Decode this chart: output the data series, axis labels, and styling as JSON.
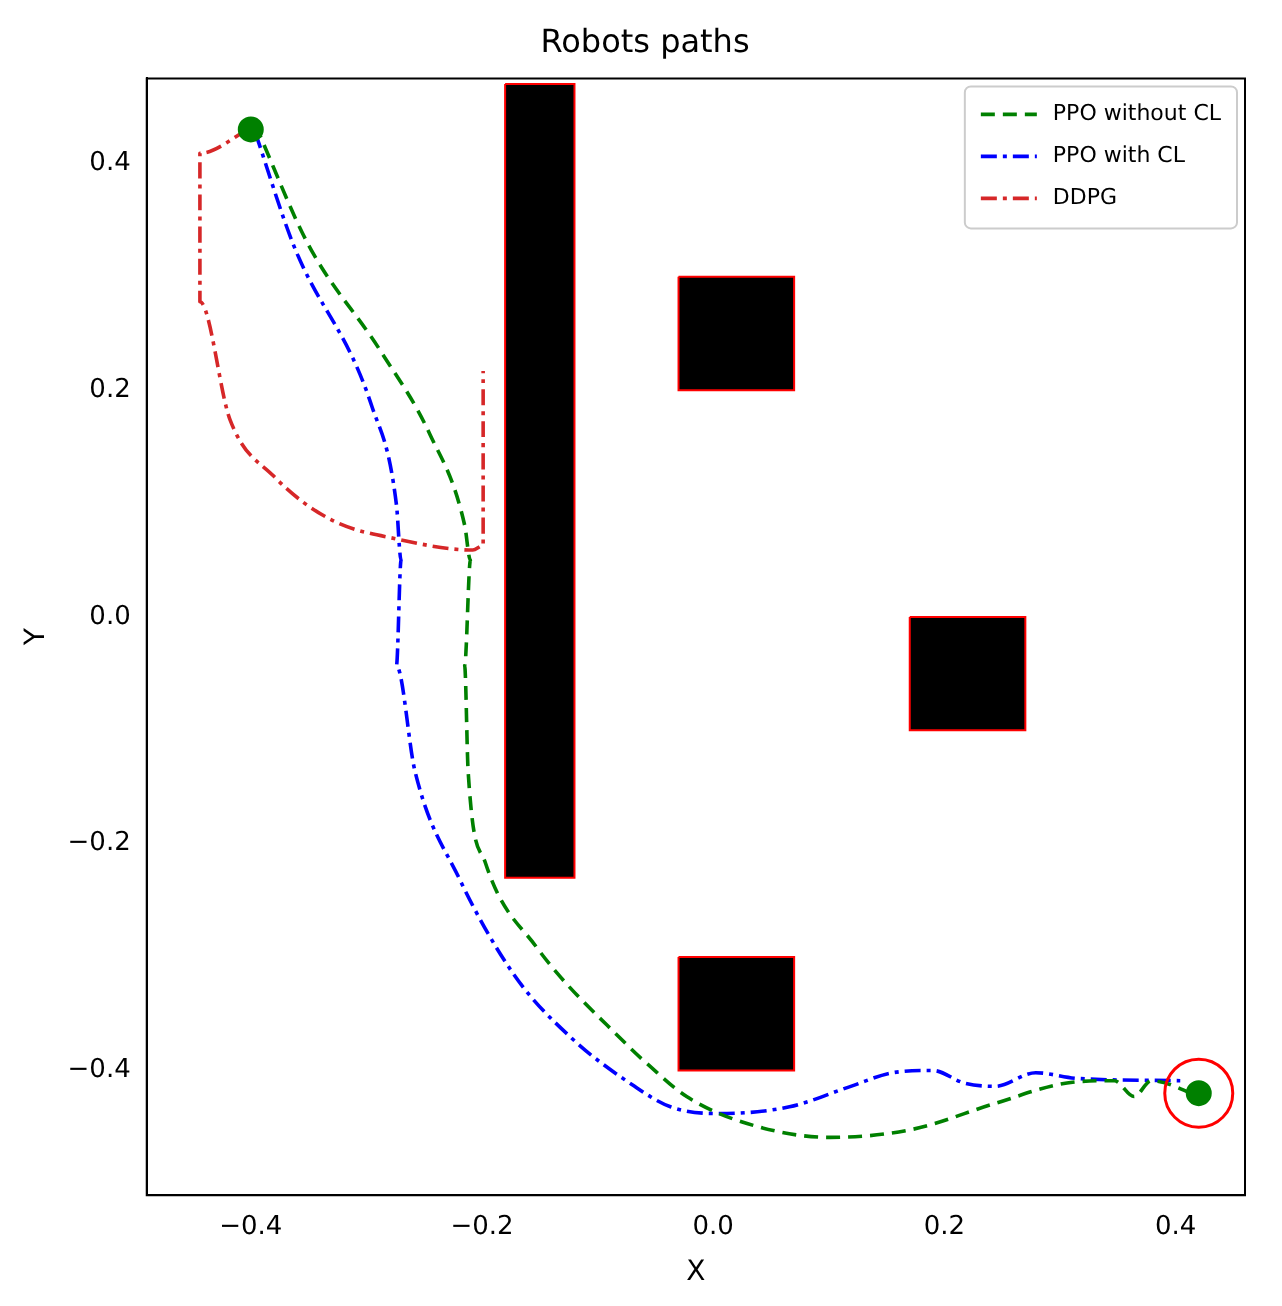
{
  "chart_data": {
    "type": "line",
    "title": "Robots paths",
    "xlabel": "X",
    "ylabel": "Y",
    "xlim": [
      -0.49,
      0.46
    ],
    "ylim": [
      -0.51,
      0.475
    ],
    "xticks": [
      {
        "value": -0.4,
        "label": "−0.4"
      },
      {
        "value": -0.2,
        "label": "−0.2"
      },
      {
        "value": 0,
        "label": "0.0"
      },
      {
        "value": 0.2,
        "label": "0.2"
      },
      {
        "value": 0.4,
        "label": "0.4"
      }
    ],
    "yticks": [
      {
        "value": -0.4,
        "label": "−0.4"
      },
      {
        "value": -0.2,
        "label": "−0.2"
      },
      {
        "value": 0,
        "label": "0.0"
      },
      {
        "value": 0.2,
        "label": "0.2"
      },
      {
        "value": 0.4,
        "label": "0.4"
      }
    ],
    "grid": false,
    "legend": "top right",
    "series": [
      {
        "type": "area",
        "color": "#000000",
        "x": [
          -0.18,
          -0.12,
          -0.12,
          -0.18,
          -0.18
        ],
        "values": [
          0.47,
          0.47,
          -0.23,
          -0.23,
          0.47
        ]
      },
      {
        "type": "area",
        "color": "#000000",
        "x": [
          -0.03,
          0.07,
          0.07,
          -0.03,
          -0.03
        ],
        "values": [
          0.3,
          0.3,
          0.2,
          0.2,
          0.3
        ]
      },
      {
        "type": "area",
        "color": "#000000",
        "x": [
          0.17,
          0.27,
          0.27,
          0.17,
          0.17
        ],
        "values": [
          0,
          0,
          -0.1,
          -0.1,
          0
        ]
      },
      {
        "type": "area",
        "color": "#000000",
        "x": [
          -0.03,
          0.07,
          0.07,
          -0.03,
          -0.03
        ],
        "values": [
          -0.3,
          -0.3,
          -0.4,
          -0.4,
          -0.3
        ]
      },
      {
        "name": "PPO without CL",
        "type": "line",
        "color": "#008000",
        "line_style": "dashed",
        "marker": "none",
        "x": [
          -0.396,
          -0.35,
          -0.288,
          -0.245,
          -0.215,
          -0.21,
          -0.215,
          -0.212,
          -0.197,
          -0.153,
          -0.075,
          -0.055,
          -0.023,
          0.03,
          0.101,
          0.172,
          0.244,
          0.306,
          0.347,
          0.364,
          0.379,
          0.421
        ],
        "values": [
          0.434,
          0.328,
          0.235,
          0.161,
          0.081,
          0.05,
          -0.043,
          -0.136,
          -0.217,
          -0.291,
          -0.377,
          -0.396,
          -0.423,
          -0.447,
          -0.459,
          -0.452,
          -0.429,
          -0.411,
          -0.409,
          -0.423,
          -0.409,
          -0.423
        ]
      },
      {
        "name": "PPO with CL",
        "type": "line",
        "color": "#0000ff",
        "line_style": "dashdot",
        "marker": "none",
        "x": [
          -0.396,
          -0.363,
          -0.295,
          -0.274,
          -0.27,
          -0.274,
          -0.258,
          -0.22,
          -0.172,
          -0.123,
          -0.068,
          -0.037,
          0.004,
          0.066,
          0.119,
          0.155,
          0.19,
          0.217,
          0.244,
          0.279,
          0.315,
          0.404
        ],
        "values": [
          0.427,
          0.328,
          0.185,
          0.099,
          0.05,
          -0.043,
          -0.136,
          -0.23,
          -0.316,
          -0.371,
          -0.414,
          -0.432,
          -0.438,
          -0.432,
          -0.414,
          -0.402,
          -0.4,
          -0.411,
          -0.414,
          -0.402,
          -0.407,
          -0.409
        ]
      },
      {
        "name": "DDPG",
        "type": "line",
        "color": "#d62728",
        "line_style": "dashdot",
        "marker": "none",
        "x": [
          -0.402,
          -0.444,
          -0.444,
          -0.418,
          -0.38,
          -0.331,
          -0.27,
          -0.208,
          -0.199,
          -0.199
        ],
        "values": [
          0.43,
          0.409,
          0.278,
          0.174,
          0.124,
          0.086,
          0.068,
          0.059,
          0.063,
          0.217
        ]
      },
      {
        "type": "scatter",
        "color": "#008000",
        "marker": "circle",
        "x": [
          -0.4,
          0.42
        ],
        "values": [
          0.43,
          -0.42
        ]
      },
      {
        "type": "bubble",
        "color": "#ff0000",
        "marker": "circle",
        "x": [
          0.42
        ],
        "values": [
          -0.42
        ],
        "sizes": [
          1
        ]
      }
    ]
  }
}
